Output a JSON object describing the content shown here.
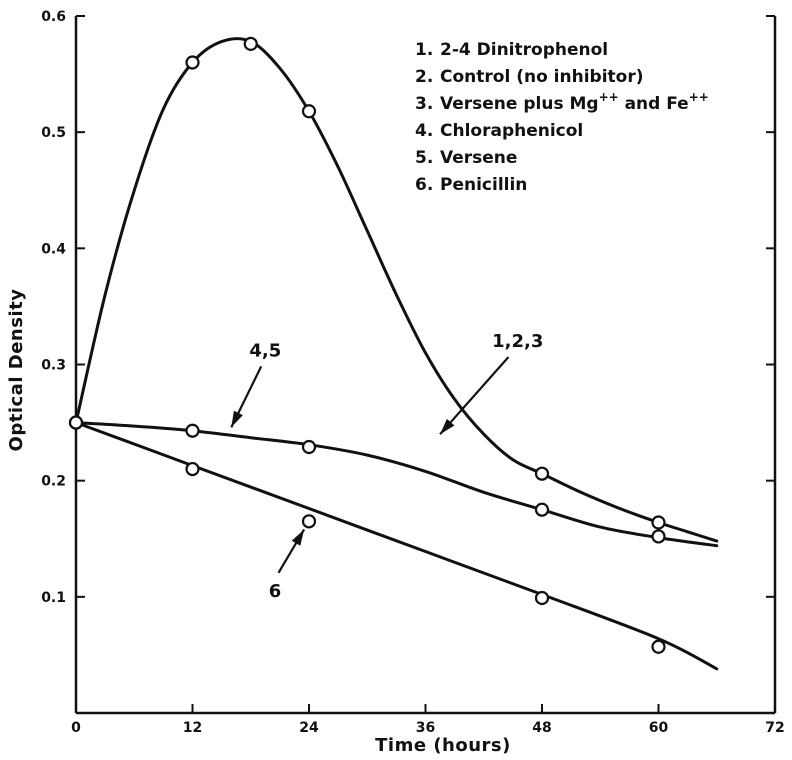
{
  "chart_data": {
    "type": "line",
    "title": "",
    "xlabel": "Time (hours)",
    "ylabel": "Optical Density",
    "xlim": [
      0,
      72
    ],
    "ylim": [
      0,
      0.6
    ],
    "grid": false,
    "legend_position": "top-right",
    "x_ticks": [
      "0",
      "12",
      "24",
      "36",
      "48",
      "60",
      "72"
    ],
    "y_ticks": [
      "0.1",
      "0.2",
      "0.3",
      "0.4",
      "0.5",
      "0.6"
    ],
    "y_tick_values": [
      0.1,
      0.2,
      0.3,
      0.4,
      0.5,
      0.6
    ],
    "x_tick_values": [
      0,
      12,
      24,
      36,
      48,
      60,
      72
    ],
    "legend": [
      {
        "num": "1.",
        "text": "2-4 Dinitrophenol"
      },
      {
        "num": "2.",
        "text": "Control (no inhibitor)"
      },
      {
        "num": "3.",
        "text": "Versene plus Mg",
        "sup1": "++",
        "mid": " and Fe",
        "sup2": "++"
      },
      {
        "num": "4.",
        "text": "Chloraphenicol"
      },
      {
        "num": "5.",
        "text": "Versene"
      },
      {
        "num": "6.",
        "text": "Penicillin"
      }
    ],
    "series": [
      {
        "name": "1,2,3",
        "points": [
          [
            0,
            0.25
          ],
          [
            12,
            0.56
          ],
          [
            18,
            0.576
          ],
          [
            24,
            0.518
          ],
          [
            48,
            0.206
          ],
          [
            60,
            0.164
          ]
        ],
        "curve": [
          [
            0,
            0.25
          ],
          [
            3,
            0.36
          ],
          [
            6,
            0.45
          ],
          [
            9,
            0.52
          ],
          [
            12,
            0.56
          ],
          [
            15,
            0.578
          ],
          [
            18,
            0.578
          ],
          [
            21,
            0.555
          ],
          [
            24,
            0.518
          ],
          [
            27,
            0.47
          ],
          [
            30,
            0.415
          ],
          [
            33,
            0.36
          ],
          [
            36,
            0.31
          ],
          [
            39,
            0.27
          ],
          [
            42,
            0.24
          ],
          [
            45,
            0.218
          ],
          [
            48,
            0.206
          ],
          [
            52,
            0.19
          ],
          [
            56,
            0.176
          ],
          [
            60,
            0.164
          ],
          [
            63,
            0.156
          ],
          [
            66,
            0.148
          ]
        ]
      },
      {
        "name": "4,5",
        "points": [
          [
            0,
            0.25
          ],
          [
            12,
            0.243
          ],
          [
            24,
            0.229
          ],
          [
            48,
            0.175
          ],
          [
            60,
            0.152
          ]
        ],
        "curve": [
          [
            0,
            0.25
          ],
          [
            6,
            0.247
          ],
          [
            12,
            0.243
          ],
          [
            18,
            0.237
          ],
          [
            24,
            0.231
          ],
          [
            30,
            0.222
          ],
          [
            36,
            0.208
          ],
          [
            42,
            0.19
          ],
          [
            48,
            0.175
          ],
          [
            54,
            0.16
          ],
          [
            60,
            0.151
          ],
          [
            66,
            0.144
          ]
        ]
      },
      {
        "name": "6",
        "points": [
          [
            0,
            0.25
          ],
          [
            12,
            0.21
          ],
          [
            24,
            0.165
          ],
          [
            48,
            0.099
          ],
          [
            60,
            0.057
          ]
        ],
        "curve": [
          [
            0,
            0.25
          ],
          [
            12,
            0.213
          ],
          [
            24,
            0.176
          ],
          [
            36,
            0.139
          ],
          [
            48,
            0.102
          ],
          [
            60,
            0.064
          ],
          [
            66,
            0.038
          ]
        ]
      }
    ],
    "annotations": [
      {
        "text": "1,2,3",
        "x": 45.5,
        "y": 0.315,
        "arrow_to": [
          37.5,
          0.24
        ]
      },
      {
        "text": "4,5",
        "x": 19.5,
        "y": 0.307,
        "arrow_to": [
          16,
          0.246
        ]
      },
      {
        "text": "6",
        "x": 20.5,
        "y": 0.1,
        "arrow_to": [
          23.5,
          0.158
        ]
      }
    ]
  }
}
